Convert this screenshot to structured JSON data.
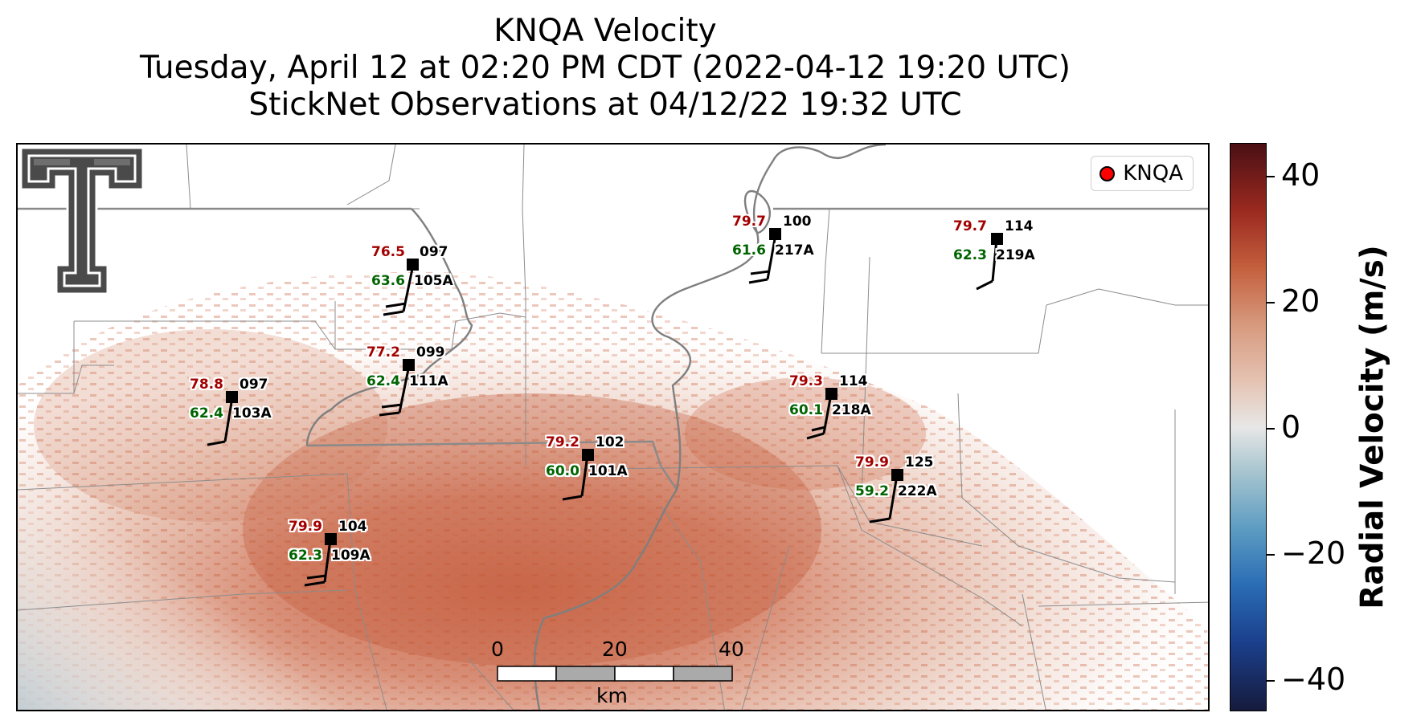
{
  "title": {
    "line1": "KNQA Velocity",
    "line2": "Tuesday, April 12 at 02:20 PM CDT (2022-04-12 19:20 UTC)",
    "line3": "StickNet Observations at 04/12/22 19:32 UTC"
  },
  "legend": {
    "label": "KNQA",
    "marker_color": "#ff0000"
  },
  "logo": {
    "icon": "texas-tech-double-t-logo"
  },
  "stations": [
    {
      "temp": "76.5",
      "dew": "63.6",
      "wind_dir": "097",
      "id": "105A"
    },
    {
      "temp": "79.7",
      "dew": "61.6",
      "wind_dir": "100",
      "id": "217A"
    },
    {
      "temp": "79.7",
      "dew": "62.3",
      "wind_dir": "114",
      "id": "219A"
    },
    {
      "temp": "77.2",
      "dew": "62.4",
      "wind_dir": "099",
      "id": "111A"
    },
    {
      "temp": "78.8",
      "dew": "62.4",
      "wind_dir": "097",
      "id": "103A"
    },
    {
      "temp": "79.3",
      "dew": "60.1",
      "wind_dir": "114",
      "id": "218A"
    },
    {
      "temp": "79.2",
      "dew": "60.0",
      "wind_dir": "102",
      "id": "101A"
    },
    {
      "temp": "79.9",
      "dew": "59.2",
      "wind_dir": "125",
      "id": "222A"
    },
    {
      "temp": "79.9",
      "dew": "62.3",
      "wind_dir": "104",
      "id": "109A"
    }
  ],
  "scale_bar": {
    "ticks": [
      "0",
      "20",
      "40"
    ],
    "unit": "km"
  },
  "colorbar": {
    "label": "Radial Velocity (m/s)",
    "ticks": [
      "40",
      "20",
      "0",
      "−20",
      "−40"
    ],
    "range": [
      -45,
      45
    ]
  }
}
